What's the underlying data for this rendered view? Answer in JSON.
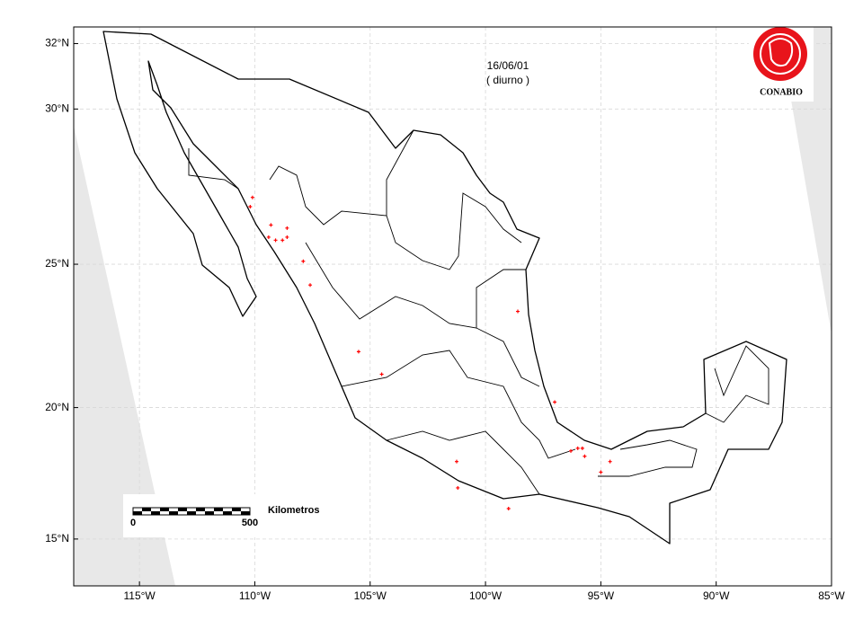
{
  "map": {
    "date": "16/06/01",
    "period": "( diurno )",
    "logo_text": "CONABIO",
    "scale": {
      "start": "0",
      "end": "500",
      "unit": "Kilometros"
    },
    "xlim": [
      -117.85,
      -85
    ],
    "ylim": [
      13.1,
      32.5
    ],
    "xticks": [
      {
        "value": -115,
        "label": "115°W"
      },
      {
        "value": -110,
        "label": "110°W"
      },
      {
        "value": -105,
        "label": "105°W"
      },
      {
        "value": -100,
        "label": "100°W"
      },
      {
        "value": -95,
        "label": "95°W"
      },
      {
        "value": -90,
        "label": "90°W"
      },
      {
        "value": -85,
        "label": "85°W"
      }
    ],
    "yticks": [
      {
        "value": 15,
        "label": "15°N"
      },
      {
        "value": 20,
        "label": "20°N"
      },
      {
        "value": 25,
        "label": "25°N"
      },
      {
        "value": 30,
        "label": "30°N"
      },
      {
        "value": 32,
        "label": "32°N"
      }
    ],
    "grid": true,
    "hotspot_color": "#ff0000",
    "hotspots": {
      "lon": [
        -110.1,
        -110.2,
        -109.3,
        -109.1,
        -108.8,
        -108.6,
        -109.4,
        -108.6,
        -107.9,
        -107.6,
        -105.5,
        -104.5,
        -98.6,
        -101.25,
        -101.2,
        -99.0,
        -96.3,
        -96.0,
        -95.7,
        -95.8,
        -95.0,
        -94.6,
        -97.0
      ],
      "lat": [
        27.2,
        26.9,
        26.3,
        25.8,
        25.8,
        25.9,
        25.9,
        26.2,
        25.1,
        24.3,
        22.0,
        21.2,
        23.4,
        18.0,
        17.0,
        16.2,
        18.4,
        18.5,
        18.2,
        18.5,
        17.6,
        18.0,
        20.2
      ]
    }
  }
}
